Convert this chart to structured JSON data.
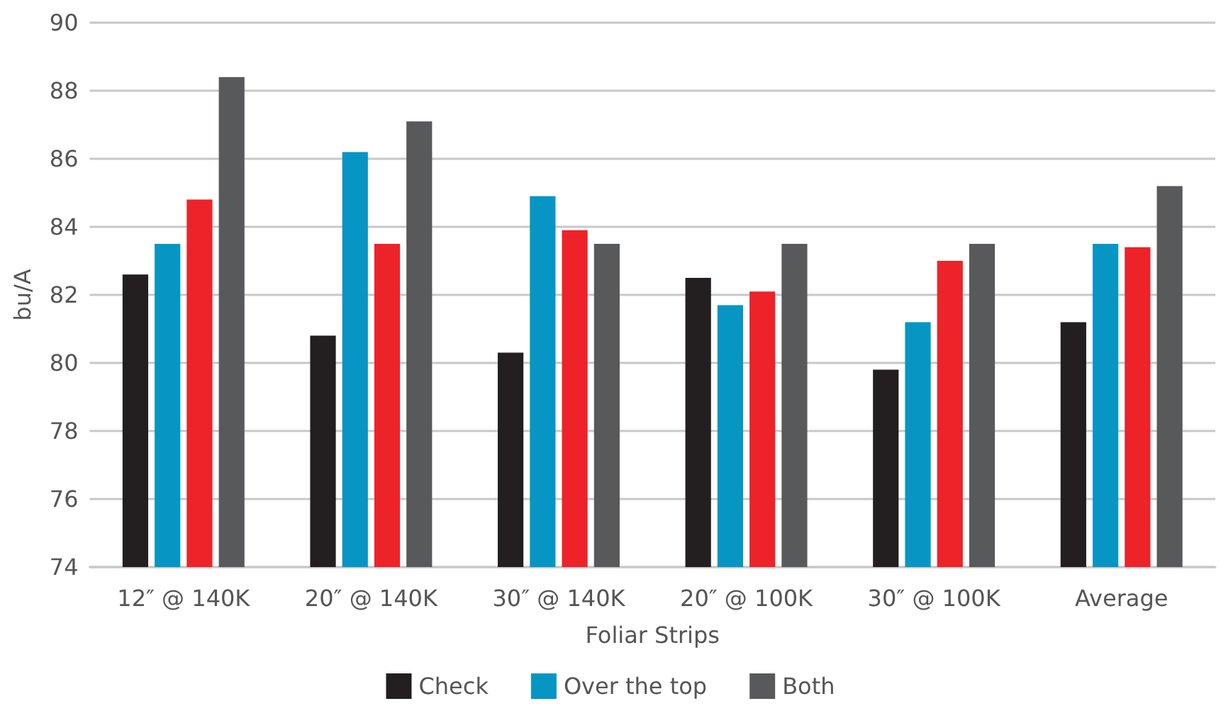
{
  "chart_data": {
    "type": "bar",
    "xlabel": "Foliar Strips",
    "ylabel": "bu/A",
    "categories": [
      "12″ @ 140K",
      "20″ @ 140K",
      "30″ @ 140K",
      "20″ @ 100K",
      "30″ @ 100K",
      "Average"
    ],
    "series": [
      {
        "name": "Check",
        "color": "#231f20",
        "values": [
          82.6,
          80.8,
          80.3,
          82.5,
          79.8,
          81.2
        ]
      },
      {
        "name": "Over the top",
        "color": "#0796c4",
        "values": [
          83.5,
          86.2,
          84.9,
          81.7,
          81.2,
          83.5
        ]
      },
      {
        "color": "#ee2229",
        "values": [
          84.8,
          83.5,
          83.9,
          82.1,
          83.0,
          83.4
        ]
      },
      {
        "name": "Both",
        "color": "#58595b",
        "values": [
          88.4,
          87.1,
          83.5,
          83.5,
          83.5,
          85.2
        ]
      }
    ],
    "ylim": [
      74,
      90
    ],
    "yticks": [
      74,
      76,
      78,
      80,
      82,
      84,
      86,
      88,
      90
    ],
    "grid": "y",
    "legend": "bottom"
  }
}
